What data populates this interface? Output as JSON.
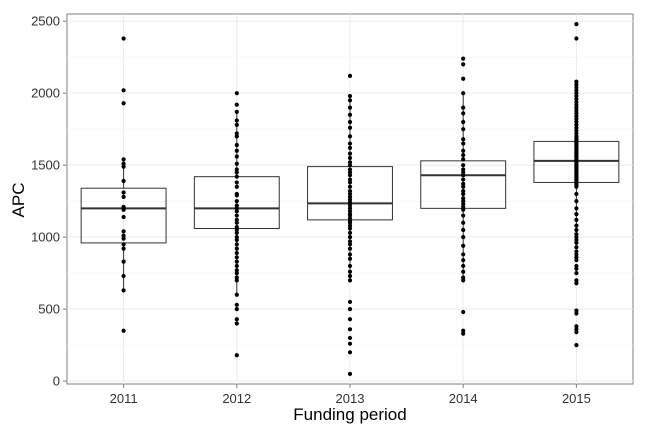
{
  "chart_data": {
    "type": "boxplot",
    "xlabel": "Funding period",
    "ylabel": "APC",
    "ylim": [
      -20,
      2550
    ],
    "yticks": [
      0,
      500,
      1000,
      1500,
      2000,
      2500
    ],
    "grid": true,
    "legend": "none",
    "categories": [
      "2011",
      "2012",
      "2013",
      "2014",
      "2015"
    ],
    "boxes": [
      {
        "category": "2011",
        "q1": 960,
        "median": 1200,
        "q3": 1340,
        "whisker_low": 620,
        "whisker_high": 1540
      },
      {
        "category": "2012",
        "q1": 1060,
        "median": 1200,
        "q3": 1420,
        "whisker_low": 590,
        "whisker_high": 1880
      },
      {
        "category": "2013",
        "q1": 1120,
        "median": 1235,
        "q3": 1490,
        "whisker_low": 700,
        "whisker_high": 1980
      },
      {
        "category": "2014",
        "q1": 1200,
        "median": 1430,
        "q3": 1530,
        "whisker_low": 710,
        "whisker_high": 2000
      },
      {
        "category": "2015",
        "q1": 1380,
        "median": 1530,
        "q3": 1665,
        "whisker_low": 970,
        "whisker_high": 2080
      }
    ],
    "points": [
      {
        "category": "2011",
        "values": [
          2380,
          2020,
          1930,
          1540,
          1510,
          1490,
          1390,
          1310,
          1280,
          1210,
          1200,
          1190,
          1140,
          1040,
          1010,
          990,
          950,
          920,
          830,
          730,
          630,
          350
        ]
      },
      {
        "category": "2012",
        "values": [
          2000,
          1920,
          1870,
          1810,
          1780,
          1720,
          1700,
          1640,
          1600,
          1560,
          1510,
          1470,
          1450,
          1420,
          1380,
          1350,
          1300,
          1290,
          1250,
          1220,
          1200,
          1180,
          1150,
          1120,
          1100,
          1070,
          1050,
          1030,
          1000,
          980,
          950,
          920,
          890,
          860,
          830,
          800,
          770,
          750,
          720,
          700,
          600,
          530,
          500,
          430,
          400,
          180
        ]
      },
      {
        "category": "2013",
        "values": [
          2120,
          1980,
          1950,
          1900,
          1850,
          1800,
          1760,
          1700,
          1650,
          1620,
          1580,
          1550,
          1520,
          1500,
          1470,
          1450,
          1430,
          1400,
          1380,
          1350,
          1320,
          1300,
          1280,
          1260,
          1240,
          1220,
          1200,
          1180,
          1160,
          1150,
          1130,
          1110,
          1100,
          1080,
          1060,
          1030,
          1000,
          970,
          950,
          920,
          880,
          850,
          800,
          760,
          730,
          700,
          550,
          500,
          430,
          360,
          300,
          260,
          200,
          50
        ]
      },
      {
        "category": "2014",
        "values": [
          2240,
          2200,
          2100,
          2000,
          1900,
          1860,
          1800,
          1750,
          1680,
          1650,
          1600,
          1570,
          1540,
          1500,
          1470,
          1450,
          1430,
          1400,
          1370,
          1350,
          1320,
          1300,
          1270,
          1250,
          1230,
          1210,
          1190,
          1150,
          1100,
          1050,
          1000,
          940,
          880,
          840,
          800,
          760,
          720,
          700,
          480,
          350,
          330
        ]
      },
      {
        "category": "2015",
        "values": [
          2480,
          2380,
          2080,
          2060,
          2040,
          2020,
          2000,
          1980,
          1960,
          1940,
          1920,
          1900,
          1880,
          1860,
          1840,
          1820,
          1800,
          1780,
          1760,
          1740,
          1720,
          1700,
          1690,
          1680,
          1670,
          1660,
          1650,
          1640,
          1630,
          1620,
          1610,
          1600,
          1590,
          1580,
          1570,
          1560,
          1550,
          1540,
          1530,
          1520,
          1510,
          1500,
          1490,
          1480,
          1470,
          1460,
          1450,
          1440,
          1430,
          1420,
          1410,
          1400,
          1390,
          1380,
          1370,
          1360,
          1350,
          1300,
          1250,
          1200,
          1160,
          1120,
          1080,
          1050,
          1020,
          1000,
          980,
          960,
          930,
          900,
          880,
          860,
          840,
          800,
          780,
          750,
          700,
          680,
          490,
          470,
          380,
          360,
          340,
          250
        ]
      }
    ]
  }
}
